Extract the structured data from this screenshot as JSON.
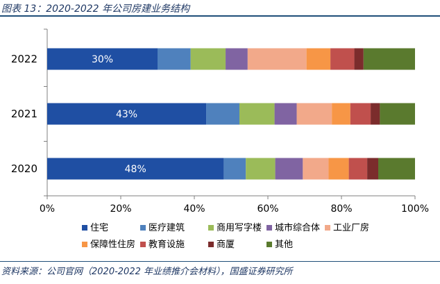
{
  "header": {
    "title": "图表 13：2020-2022 年公司房建业务结构"
  },
  "footer": {
    "source": "资料来源：公司官网（2020-2022 年业绩推介会材料），国盛证券研究所"
  },
  "chart_data": {
    "type": "bar",
    "orientation": "horizontal",
    "stacked": "percent",
    "categories": [
      "2022",
      "2021",
      "2020"
    ],
    "xlim": [
      0,
      100
    ],
    "x_ticks": [
      "0%",
      "20%",
      "40%",
      "60%",
      "80%",
      "100%"
    ],
    "grid": false,
    "legend_position": "bottom",
    "series": [
      {
        "name": "住宅",
        "color": "#1f4fa3",
        "values": [
          30,
          43,
          48
        ],
        "labels": [
          "30%",
          "43%",
          "48%"
        ]
      },
      {
        "name": "医疗建筑",
        "color": "#4f81bd",
        "values": [
          9,
          9,
          6
        ]
      },
      {
        "name": "商用写字楼",
        "color": "#9bbb59",
        "values": [
          9.5,
          9.5,
          8
        ]
      },
      {
        "name": "城市综合体",
        "color": "#8064a2",
        "values": [
          6,
          6,
          7.5
        ]
      },
      {
        "name": "工业厂房",
        "color": "#f2a98a",
        "values": [
          16,
          9.5,
          7
        ]
      },
      {
        "name": "保障性住房",
        "color": "#f79646",
        "values": [
          6.5,
          5,
          5.5
        ]
      },
      {
        "name": "教育设施",
        "color": "#c0504d",
        "values": [
          6.5,
          5.5,
          5
        ]
      },
      {
        "name": "商厦",
        "color": "#7b2c2c",
        "values": [
          2.5,
          2.5,
          3
        ]
      },
      {
        "name": "其他",
        "color": "#5a7a2e",
        "values": [
          14,
          9.5,
          10
        ]
      }
    ]
  }
}
